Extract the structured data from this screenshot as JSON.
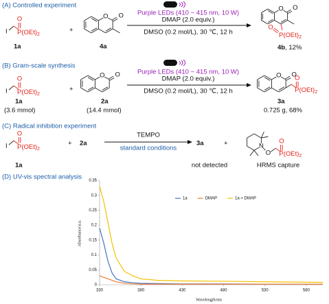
{
  "scheme_a": {
    "heading": "(A) Controlled experiment",
    "reactant_1": {
      "iodine": "I",
      "oxygen": "O",
      "phosphorus": "P(OEt)",
      "subscript": "2",
      "label": "1a"
    },
    "plus": "+",
    "reactant_2": {
      "ring_oxygen": "O",
      "carbonyl_oxygen": "O",
      "label": "4a"
    },
    "conditions": {
      "light": "Purple LEDs (410 ~ 415 nm, 10 W)",
      "additive": "DMAP (2.0 equiv.)",
      "solvent": "DMSO (0.2 mol/L), 30 ℃, 12 h"
    },
    "product": {
      "ring_oxygen": "O",
      "carbonyl_oxygen": "O",
      "oxygen": "O",
      "phosphorus": "P(OEt)",
      "subscript": "2",
      "label": "4b",
      "yield": ", 12%"
    }
  },
  "scheme_b": {
    "heading": "(B) Gram-scale synthesis",
    "reactant_1": {
      "iodine": "I",
      "oxygen": "O",
      "phosphorus": "P(OEt)",
      "subscript": "2",
      "label": "1a",
      "amount": "(3.6 mmol)"
    },
    "plus": "+",
    "reactant_2": {
      "ring_oxygen": "O",
      "carbonyl_oxygen": "O",
      "label": "2a",
      "amount": "(14.4 mmol)"
    },
    "conditions": {
      "light": "Purple LEDs (410 ~ 415 nm, 10 W)",
      "additive": "DMAP (2.0 equiv.)",
      "solvent": "DMSO (0.2 mol/L), 30 ℃, 12 h"
    },
    "product": {
      "ring_oxygen": "O",
      "carbonyl_oxygen": "O",
      "oxygen": "O",
      "phosphorus": "P(OEt)",
      "subscript": "2",
      "label": "3a",
      "yield": "0.725 g, 68%"
    }
  },
  "scheme_c": {
    "heading": "(C) Radical inhibition experiment",
    "reactant_1": {
      "iodine": "I",
      "oxygen": "O",
      "phosphorus": "P(OEt)",
      "subscript": "2",
      "label": "1a"
    },
    "plus": "+",
    "reactant_2": "2a",
    "reagent": "TEMPO",
    "conditions": "standard conditions",
    "product": "3a",
    "product_note": "not detected",
    "plus_2": "+",
    "adduct": {
      "nitrogen": "N",
      "oxygen": "O",
      "phos_oxygen": "O",
      "phosphorus": "P(OEt)",
      "subscript": "2",
      "note": "HRMS capture"
    }
  },
  "scheme_d": {
    "heading": "(D) UV-vis spectral analysis"
  },
  "chart_data": {
    "type": "line",
    "x_label": "Wavelength/nm",
    "y_label": "Absorbance/a.u.",
    "x": [
      330,
      335,
      340,
      345,
      350,
      360,
      370,
      380,
      400,
      430,
      480,
      530,
      600
    ],
    "series": [
      {
        "name": "1a",
        "color": "#4472c4",
        "values": [
          0.19,
          0.14,
          0.08,
          0.04,
          0.02,
          0.01,
          0.007,
          0.005,
          0.004,
          0.003,
          0.003,
          0.002,
          0.002
        ]
      },
      {
        "name": "DMAP",
        "color": "#ed7d31",
        "values": [
          0.03,
          0.025,
          0.02,
          0.015,
          0.01,
          0.005,
          0.003,
          0.002,
          0.002,
          0.002,
          0.002,
          0.002,
          0.002
        ]
      },
      {
        "name": "1a + DMAP",
        "color": "#f2c200",
        "values": [
          0.33,
          0.28,
          0.21,
          0.14,
          0.09,
          0.045,
          0.03,
          0.02,
          0.015,
          0.013,
          0.012,
          0.01,
          0.008
        ]
      }
    ],
    "xlim": [
      330,
      600
    ],
    "xticks": [
      330,
      380,
      430,
      480,
      530,
      580
    ],
    "ylim": [
      0,
      0.35
    ],
    "yticks": [
      0,
      0.05,
      0.1,
      0.15,
      0.2,
      0.25,
      0.3,
      0.35
    ],
    "legend": "top"
  }
}
